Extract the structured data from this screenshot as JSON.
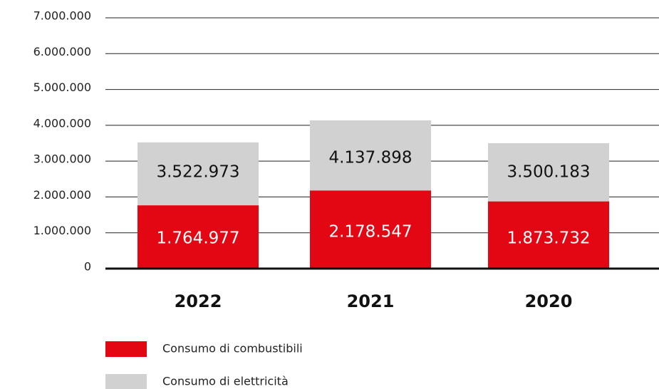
{
  "chart_data": {
    "type": "bar",
    "categories": [
      "2022",
      "2021",
      "2020"
    ],
    "series": [
      {
        "name": "Consumo di elettricità",
        "color": "#d1d1d1",
        "values": [
          3522973,
          4137898,
          3500183
        ],
        "value_labels": [
          "3.522.973",
          "4.137.898",
          "3.500.183"
        ]
      },
      {
        "name": "Consumo di combustibili",
        "color": "#e30613",
        "values": [
          1764977,
          2178547,
          1873732
        ],
        "value_labels": [
          "1.764.977",
          "2.178.547",
          "1.873.732"
        ]
      }
    ],
    "legend_order": [
      1,
      0
    ],
    "ylim": [
      0,
      7000000
    ],
    "yticks": [
      0,
      {
        "value": 1000000,
        "label": "1.000.000"
      },
      {
        "value": 2000000,
        "label": "2.000.000"
      },
      {
        "value": 3000000,
        "label": "3.000.000"
      },
      {
        "value": 4000000,
        "label": "4.000.000"
      },
      {
        "value": 5000000,
        "label": "5.000.000"
      },
      {
        "value": 6000000,
        "label": "6.000.000"
      },
      {
        "value": 7000000,
        "label": "7.000.000"
      }
    ],
    "grid": true
  }
}
